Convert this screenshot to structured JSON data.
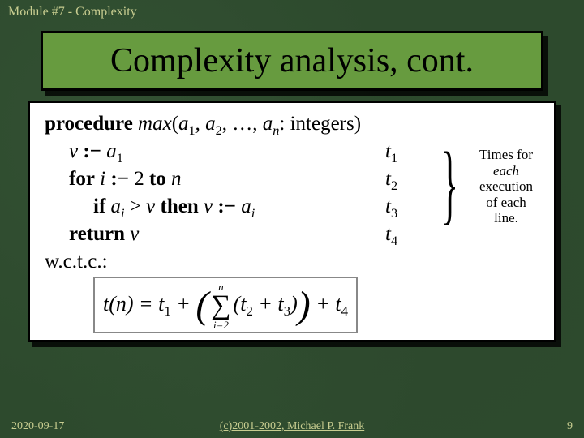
{
  "header": "Module #7 - Complexity",
  "title": "Complexity analysis, cont.",
  "proc": {
    "kw_procedure": "procedure",
    "fname": "max",
    "args_open": "(",
    "a": "a",
    "sub1": "1",
    "comma1": ", ",
    "sub2": "2",
    "comma2": ", …, ",
    "subn": "n",
    "args_close": ": integers)"
  },
  "l1": {
    "v": "v",
    "assign": " :− ",
    "a": "a",
    "sub": "1"
  },
  "l2": {
    "for": "for",
    "i": " i ",
    "assign": ":− ",
    "two": "2 ",
    "to": "to",
    "n": " n"
  },
  "l3": {
    "if": "if",
    "ai": " a",
    "subi": "i",
    "gt": " > ",
    "v": "v",
    "then": " then ",
    "v2": "v",
    "assign": " :− ",
    "a2": "a",
    "subi2": "i"
  },
  "l4": {
    "return": "return",
    "v": " v"
  },
  "t": {
    "t": "t",
    "s1": "1",
    "s2": "2",
    "s3": "3",
    "s4": "4"
  },
  "annotation": {
    "l1": "Times for",
    "l2": "each",
    "l3": "execution",
    "l4": "of each",
    "l5": "line."
  },
  "wctc": "w.c.t.c.:",
  "formula": {
    "lhs": "t(n) = t",
    "sub1": "1",
    "plus1": " + ",
    "sumtop": "n",
    "sigma": "∑",
    "sumbot": "i=2",
    "inner_t": "(t",
    "sub2": "2",
    "inner_plus": " + t",
    "sub3": "3",
    "inner_close": ")",
    "plus2": " + t",
    "sub4": "4"
  },
  "footer": {
    "date": "2020-09-17",
    "copyright": "(c)2001-2002, Michael P. Frank",
    "page": "9"
  }
}
